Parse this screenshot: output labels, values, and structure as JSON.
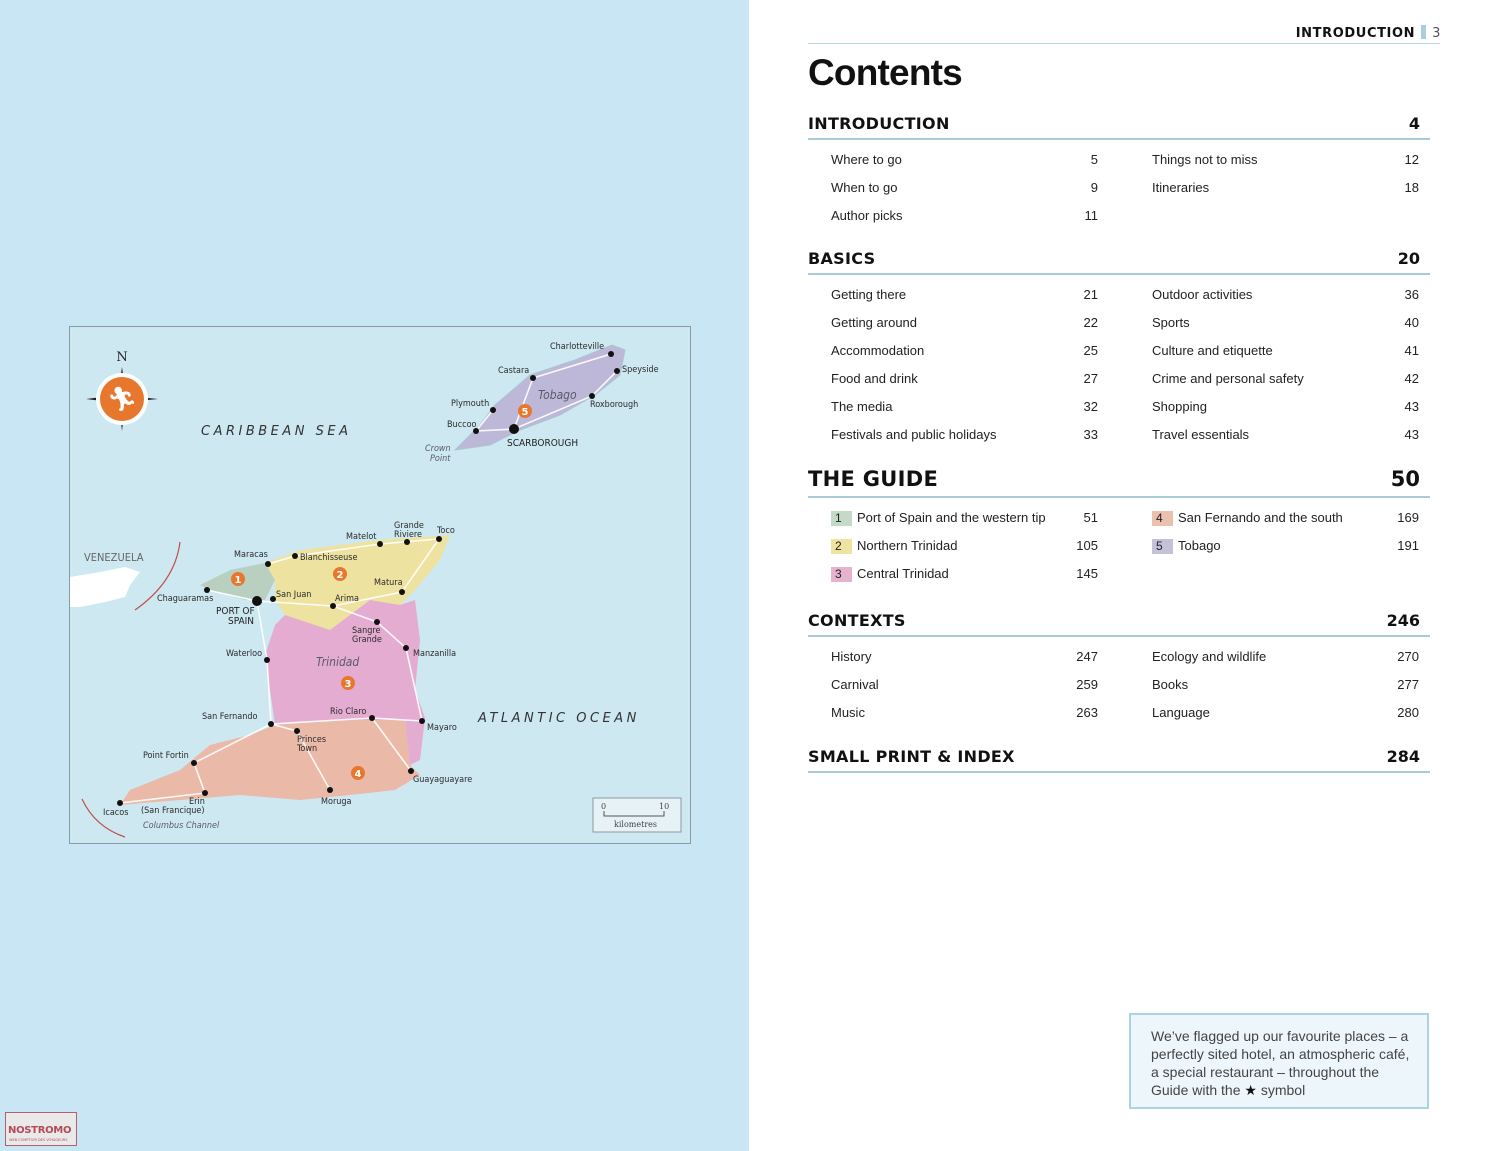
{
  "header": {
    "section": "INTRODUCTION",
    "page_number": "3"
  },
  "title": "Contents",
  "sections": [
    {
      "name": "INTRODUCTION",
      "page": "4",
      "left": [
        {
          "label": "Where to go",
          "page": "5"
        },
        {
          "label": "When to go",
          "page": "9"
        },
        {
          "label": "Author picks",
          "page": "11"
        }
      ],
      "right": [
        {
          "label": "Things not to miss",
          "page": "12"
        },
        {
          "label": "Itineraries",
          "page": "18"
        }
      ]
    },
    {
      "name": "BASICS",
      "page": "20",
      "left": [
        {
          "label": "Getting there",
          "page": "21"
        },
        {
          "label": "Getting around",
          "page": "22"
        },
        {
          "label": "Accommodation",
          "page": "25"
        },
        {
          "label": "Food and drink",
          "page": "27"
        },
        {
          "label": "The media",
          "page": "32"
        },
        {
          "label": "Festivals and public holidays",
          "page": "33"
        }
      ],
      "right": [
        {
          "label": "Outdoor activities",
          "page": "36"
        },
        {
          "label": "Sports",
          "page": "40"
        },
        {
          "label": "Culture and etiquette",
          "page": "41"
        },
        {
          "label": "Crime and personal safety",
          "page": "42"
        },
        {
          "label": "Shopping",
          "page": "43"
        },
        {
          "label": "Travel essentials",
          "page": "43"
        }
      ]
    },
    {
      "name": "THE GUIDE",
      "page": "50",
      "big": true,
      "left": [
        {
          "num": "1",
          "label": "Port of Spain and the western tip",
          "page": "51",
          "color": "#c5d9c8"
        },
        {
          "num": "2",
          "label": "Northern Trinidad",
          "page": "105",
          "color": "#efe3a2"
        },
        {
          "num": "3",
          "label": "Central Trinidad",
          "page": "145",
          "color": "#e6b3cf"
        }
      ],
      "right": [
        {
          "num": "4",
          "label": "San Fernando and the south",
          "page": "169",
          "color": "#ebc0ae"
        },
        {
          "num": "5",
          "label": "Tobago",
          "page": "191",
          "color": "#c4c2d9"
        }
      ]
    },
    {
      "name": "CONTEXTS",
      "page": "246",
      "left": [
        {
          "label": "History",
          "page": "247"
        },
        {
          "label": "Carnival",
          "page": "259"
        },
        {
          "label": "Music",
          "page": "263"
        }
      ],
      "right": [
        {
          "label": "Ecology and wildlife",
          "page": "270"
        },
        {
          "label": "Books",
          "page": "277"
        },
        {
          "label": "Language",
          "page": "280"
        }
      ]
    },
    {
      "name": "SMALL PRINT & INDEX",
      "page": "284",
      "left": [],
      "right": []
    }
  ],
  "note": {
    "text_before": "We’ve flagged up our favourite places – a perfectly sited hotel, an atmospheric café, a special restaurant – throughout the Guide with the",
    "icon": "star-icon",
    "text_after": "symbol"
  },
  "logo": {
    "name": "NOSTROMO",
    "tagline": "WEB COMPTOIR DES VOYAGEURS"
  },
  "map": {
    "region_colors": {
      "1": "#b9d0c0",
      "2": "#eee2a0",
      "3": "#e4acd0",
      "4": "#eab9a8",
      "5": "#bdb7d8"
    },
    "seas": {
      "caribbean": "CARIBBEAN SEA",
      "atlantic": "ATLANTIC OCEAN",
      "channel": "Columbus Channel"
    },
    "islands": {
      "tobago": "Tobago",
      "trinidad": "Trinidad"
    },
    "countries": {
      "venezuela": "VENEZUELA"
    },
    "compass": "N",
    "places": {
      "charlotteville": "Charlotteville",
      "castara": "Castara",
      "speyside": "Speyside",
      "roxborough": "Roxborough",
      "plymouth": "Plymouth",
      "buccoo": "Buccoo",
      "scarborough": "SCARBOROUGH",
      "crown1": "Crown",
      "crown2": "Point",
      "maracas": "Maracas",
      "blanchisseuse": "Blanchisseuse",
      "matelot": "Matelot",
      "grande1": "Grande",
      "grande2": "Riviere",
      "toco": "Toco",
      "matura": "Matura",
      "chaguaramas": "Chaguaramas",
      "sanjuan": "San Juan",
      "arima": "Arima",
      "pos1": "PORT OF",
      "pos2": "SPAIN",
      "sangre1": "Sangre",
      "sangre2": "Grande",
      "waterloo": "Waterloo",
      "manzanilla": "Manzanilla",
      "sanfernando": "San Fernando",
      "rioclaro": "Rio Claro",
      "mayaro": "Mayaro",
      "princes1": "Princes",
      "princes2": "Town",
      "pointfortin": "Point Fortin",
      "guayaguayare": "Guayaguayare",
      "erin": "Erin",
      "sanfrancique": "(San Francique)",
      "moruga": "Moruga",
      "icacos": "Icacos"
    },
    "scale": {
      "min": "0",
      "max": "10",
      "unit": "kilometres"
    }
  }
}
